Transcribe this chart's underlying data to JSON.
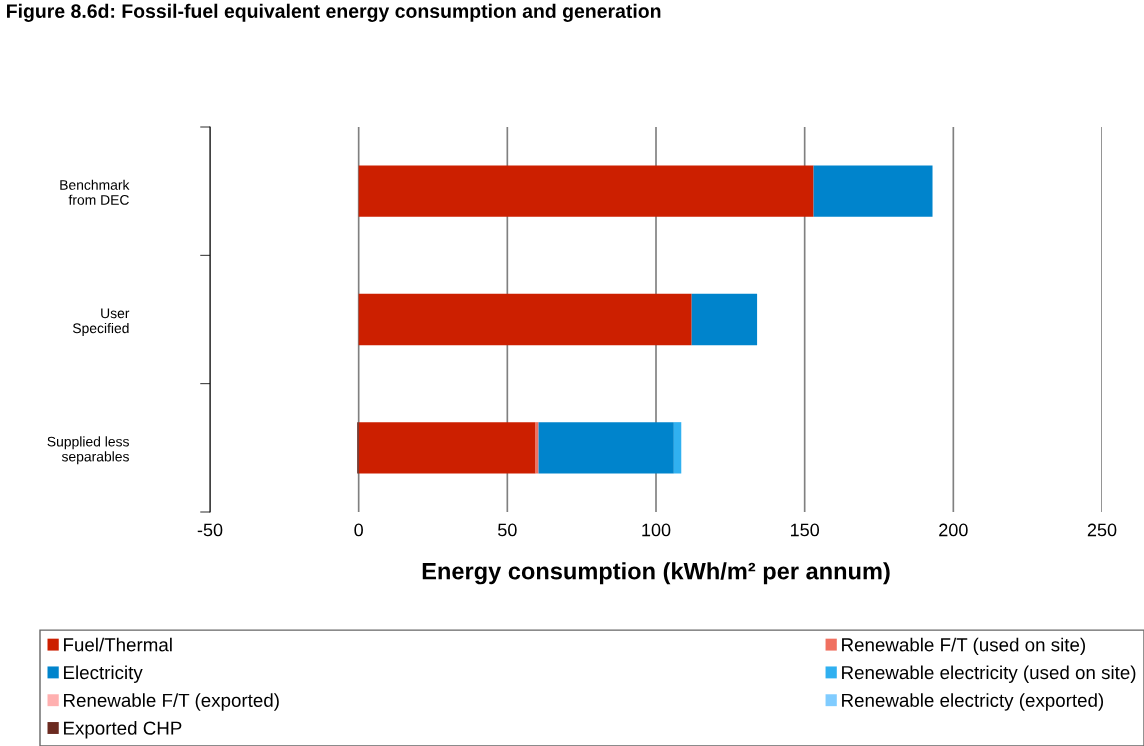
{
  "chart_data": {
    "type": "bar",
    "orientation": "horizontal",
    "stacked": true,
    "title": "Figure 8.6d: Fossil-fuel equivalent energy consumption and generation",
    "xlabel": "Energy consumption (kWh/m² per annum)",
    "categories": [
      "Benchmark\nfrom DEC",
      "User\nSpecified",
      "Supplied less\nseparables"
    ],
    "series": [
      {
        "name": "Fuel/Thermal",
        "color": "#cc1f00",
        "values": [
          153,
          112,
          59.5
        ]
      },
      {
        "name": "Renewable F/T (used on site)",
        "color": "#f07060",
        "values": [
          null,
          null,
          1
        ]
      },
      {
        "name": "Electricity",
        "color": "#0084cc",
        "values": [
          40,
          22,
          45.5
        ]
      },
      {
        "name": "Renewable electricity (used on site)",
        "color": "#30b0f0",
        "values": [
          null,
          null,
          2.5
        ]
      },
      {
        "name": "Renewable F/T (exported)",
        "color": "#ffb0b0",
        "values": [
          null,
          null,
          null
        ]
      },
      {
        "name": "Renewable electricty (exported)",
        "color": "#80ccff",
        "values": [
          null,
          null,
          null
        ]
      },
      {
        "name": "Exported CHP",
        "color": "#6b2a20",
        "values": [
          null,
          null,
          -0.5
        ]
      }
    ],
    "xlim": [
      -50,
      250
    ],
    "xticks": [
      -50,
      0,
      50,
      100,
      150,
      200,
      250
    ],
    "grid": "x",
    "legend": "bottom"
  }
}
